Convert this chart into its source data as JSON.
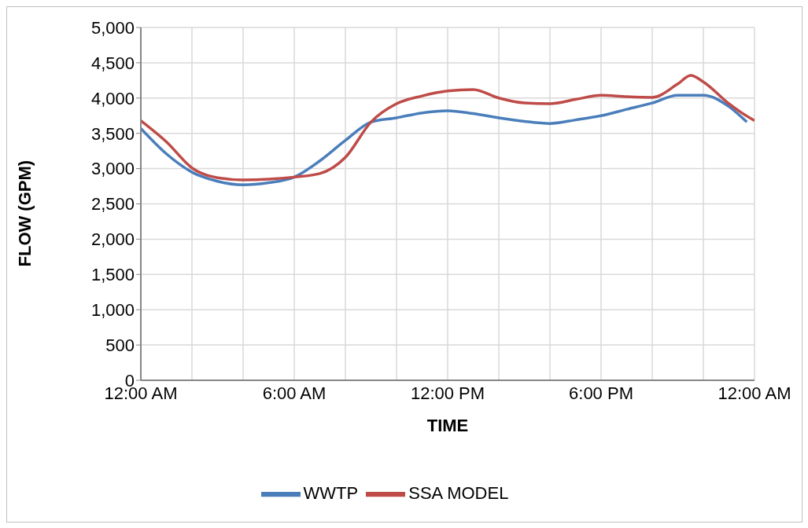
{
  "chart_data": {
    "type": "line",
    "xlabel": "TIME",
    "ylabel": "FLOW (GPM)",
    "xlim": [
      0,
      24
    ],
    "xticks": [
      {
        "value": 0,
        "label": "12:00 AM"
      },
      {
        "value": 2,
        "label": null
      },
      {
        "value": 4,
        "label": null
      },
      {
        "value": 6,
        "label": "6:00 AM"
      },
      {
        "value": 8,
        "label": null
      },
      {
        "value": 10,
        "label": null
      },
      {
        "value": 12,
        "label": "12:00 PM"
      },
      {
        "value": 14,
        "label": null
      },
      {
        "value": 16,
        "label": null
      },
      {
        "value": 18,
        "label": "6:00 PM"
      },
      {
        "value": 20,
        "label": null
      },
      {
        "value": 22,
        "label": null
      },
      {
        "value": 24,
        "label": "12:00 AM"
      }
    ],
    "ylim": [
      0,
      5000
    ],
    "yticks": [
      {
        "value": 0,
        "label": "0"
      },
      {
        "value": 500,
        "label": "500"
      },
      {
        "value": 1000,
        "label": "1,000"
      },
      {
        "value": 1500,
        "label": "1,500"
      },
      {
        "value": 2000,
        "label": "2,000"
      },
      {
        "value": 2500,
        "label": "2,500"
      },
      {
        "value": 3000,
        "label": "3,000"
      },
      {
        "value": 3500,
        "label": "3,500"
      },
      {
        "value": 4000,
        "label": "4,000"
      },
      {
        "value": 4500,
        "label": "4,500"
      },
      {
        "value": 5000,
        "label": "5,000"
      }
    ],
    "grid": true,
    "legend": "bottom",
    "marker": "none",
    "line_style": "solid",
    "series": [
      {
        "name": "WWTP",
        "color": "#4a7ebb",
        "x": [
          0,
          1,
          2,
          3,
          4,
          5,
          6,
          7,
          8,
          9,
          10,
          11,
          12,
          13,
          14,
          15,
          16,
          17,
          18,
          19,
          20,
          21,
          22,
          23,
          23.7
        ],
        "values": [
          3570,
          3210,
          2950,
          2820,
          2770,
          2800,
          2880,
          3110,
          3400,
          3660,
          3720,
          3790,
          3820,
          3780,
          3720,
          3670,
          3640,
          3690,
          3750,
          3840,
          3930,
          4040,
          4040,
          3880,
          3660
        ]
      },
      {
        "name": "SSA MODEL",
        "color": "#be4b48",
        "x": [
          0,
          1,
          2,
          3,
          4,
          5,
          6,
          7,
          8,
          9,
          10,
          11,
          12,
          13,
          14,
          15,
          16,
          17,
          18,
          19,
          20,
          21,
          21.5,
          22,
          23,
          23.5,
          24
        ],
        "values": [
          3680,
          3380,
          3010,
          2870,
          2840,
          2850,
          2880,
          2930,
          3160,
          3660,
          3920,
          4030,
          4100,
          4120,
          4000,
          3930,
          3920,
          3980,
          4040,
          4020,
          4010,
          4200,
          4320,
          4230,
          3920,
          3790,
          3680
        ]
      }
    ]
  }
}
